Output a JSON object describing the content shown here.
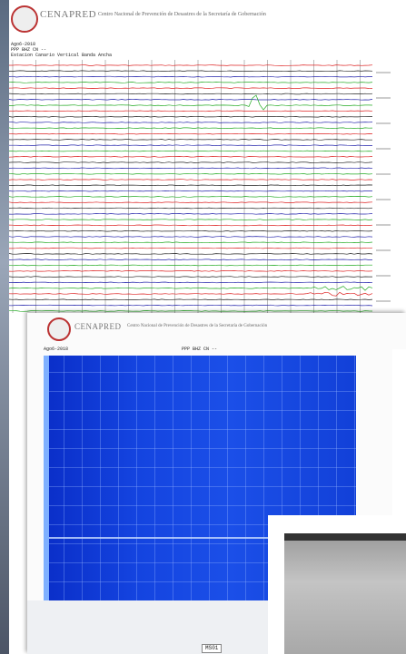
{
  "panel_top": {
    "logo": "CENAPRED",
    "header": "Centro Nacional de Prevención de Desastres de la Secretaría de Gobernación",
    "info": [
      "Ago6-2018",
      "PPP BHZ CN --",
      "Estacion Canario Vertical Banda Ancha"
    ]
  },
  "panel_bottom": {
    "logo": "CENAPRED",
    "header": "Centro Nacional de Prevención de Desastres de la Secretaría de Gobernación",
    "info_left": "Ago6-2018",
    "info_center": "PPP BHZ CN --"
  },
  "footer": {
    "button": "MS01"
  }
}
